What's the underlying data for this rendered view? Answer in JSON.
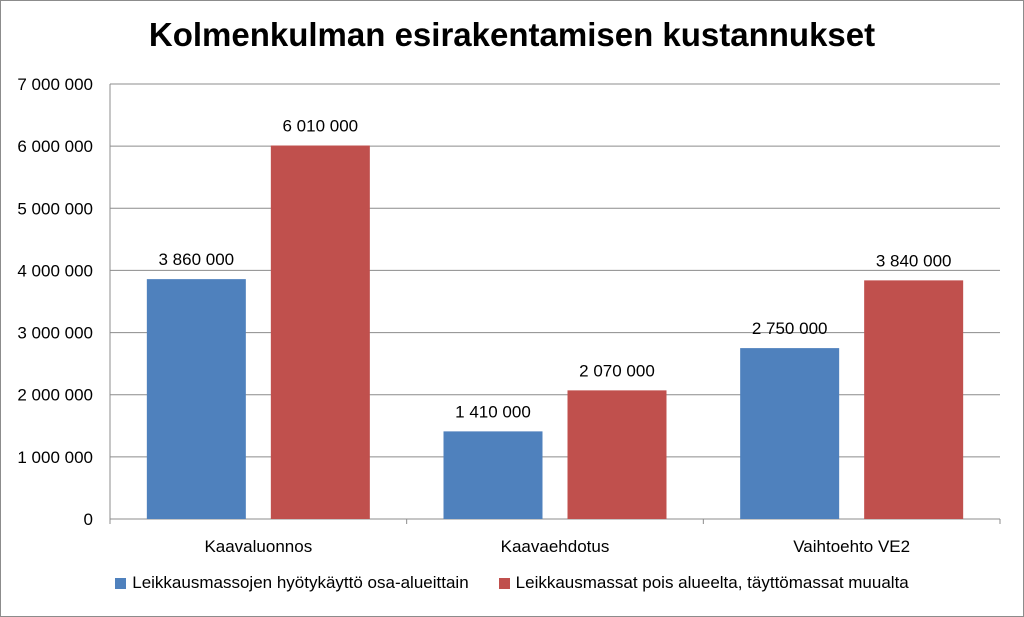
{
  "chart_data": {
    "type": "bar",
    "title": "Kolmenkulman esirakentamisen kustannukset",
    "xlabel": "",
    "ylabel": "",
    "categories": [
      "Kaavaluonnos",
      "Kaavaehdotus",
      "Vaihtoehto VE2"
    ],
    "series": [
      {
        "name": "Leikkausmassojen hyötykäyttö osa-alueittain",
        "color": "#4f81bd",
        "values": [
          3860000,
          1410000,
          2750000
        ],
        "labels": [
          "3 860 000",
          "1 410 000",
          "2 750 000"
        ]
      },
      {
        "name": "Leikkausmassat pois alueelta, täyttömassat muualta",
        "color": "#c0504d",
        "values": [
          6010000,
          2070000,
          3840000
        ],
        "labels": [
          "6 010 000",
          "2 070 000",
          "3 840 000"
        ]
      }
    ],
    "ylim": [
      0,
      7000000
    ],
    "yticks": [
      0,
      1000000,
      2000000,
      3000000,
      4000000,
      5000000,
      6000000,
      7000000
    ],
    "ytick_labels": [
      "0",
      "1 000 000",
      "2 000 000",
      "3 000 000",
      "4 000 000",
      "5 000 000",
      "6 000 000",
      "7 000 000"
    ],
    "grid": true,
    "legend_position": "bottom"
  }
}
